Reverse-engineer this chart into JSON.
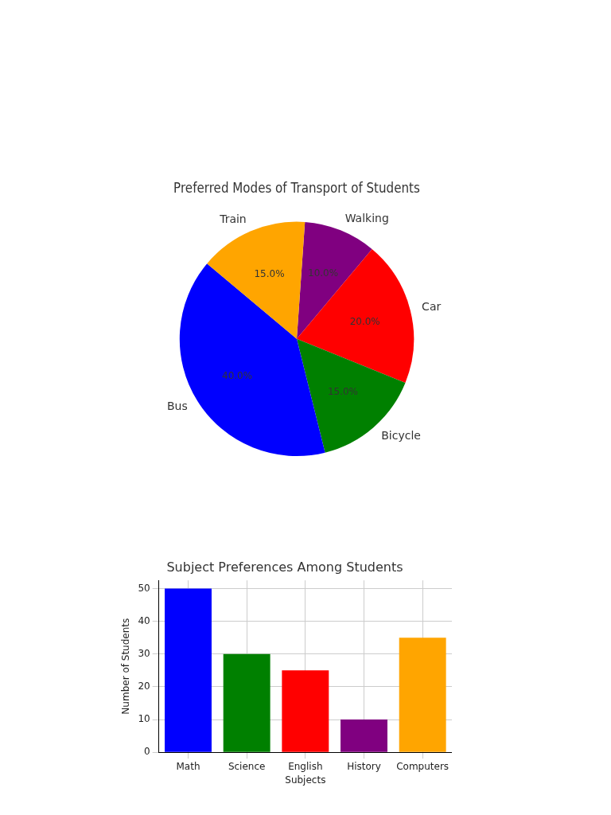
{
  "chart_data": [
    {
      "type": "pie",
      "title": "Preferred Modes of Transport of Students",
      "categories": [
        "Walking",
        "Car",
        "Bicycle",
        "Bus",
        "Train"
      ],
      "values": [
        10,
        20,
        15,
        40,
        15
      ],
      "colors": [
        "#800080",
        "#ff0000",
        "#008000",
        "#0000ff",
        "#ffa500"
      ],
      "value_labels": [
        "10.0%",
        "20.0%",
        "15.0%",
        "40.0%",
        "15.0%"
      ],
      "legend": false
    },
    {
      "type": "bar",
      "title": "Subject Preferences Among Students",
      "categories": [
        "Math",
        "Science",
        "English",
        "History",
        "Computers"
      ],
      "values": [
        50,
        30,
        25,
        10,
        35
      ],
      "colors": [
        "#0000ff",
        "#008000",
        "#ff0000",
        "#800080",
        "#ffa500"
      ],
      "xlabel": "Subjects",
      "ylabel": "Number of Students",
      "ylim": [
        0,
        52.5
      ],
      "yticks": [
        0,
        10,
        20,
        30,
        40,
        50
      ],
      "grid": true,
      "legend": false
    }
  ]
}
